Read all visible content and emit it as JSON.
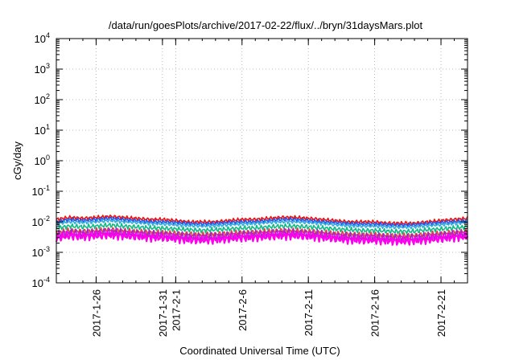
{
  "chart_data": {
    "type": "line",
    "title": "/data/run/goesPlots/archive/2017-02-22/flux/../bryn/31daysMars.plot",
    "xlabel": "Coordinated Universal Time (UTC)",
    "ylabel": "cGy/day",
    "y_scale": "log",
    "ylim": [
      0.0001,
      10000
    ],
    "xlim": [
      "2017-01-23",
      "2017-02-23"
    ],
    "grid": true,
    "y_ticks": [
      {
        "base": "10",
        "exp": "4",
        "value": 10000
      },
      {
        "base": "10",
        "exp": "3",
        "value": 1000
      },
      {
        "base": "10",
        "exp": "2",
        "value": 100
      },
      {
        "base": "10",
        "exp": "1",
        "value": 10
      },
      {
        "base": "10",
        "exp": "0",
        "value": 1
      },
      {
        "base": "10",
        "exp": "-1",
        "value": 0.1
      },
      {
        "base": "10",
        "exp": "-2",
        "value": 0.01
      },
      {
        "base": "10",
        "exp": "-3",
        "value": 0.001
      },
      {
        "base": "10",
        "exp": "-4",
        "value": 0.0001
      }
    ],
    "x_ticks": [
      {
        "date": "2017-01-26",
        "label": "2017-1-26"
      },
      {
        "date": "2017-01-31",
        "label": "2017-1-31"
      },
      {
        "date": "2017-02-01",
        "label": "2017-2-1"
      },
      {
        "date": "2017-02-06",
        "label": "2017-2-6"
      },
      {
        "date": "2017-02-11",
        "label": "2017-2-11"
      },
      {
        "date": "2017-02-16",
        "label": "2017-2-16"
      },
      {
        "date": "2017-02-21",
        "label": "2017-2-21"
      }
    ],
    "x": [
      "2017-01-23",
      "2017-01-24",
      "2017-01-25",
      "2017-01-26",
      "2017-01-27",
      "2017-01-28",
      "2017-01-29",
      "2017-01-30",
      "2017-01-31",
      "2017-02-01",
      "2017-02-02",
      "2017-02-03",
      "2017-02-04",
      "2017-02-05",
      "2017-02-06",
      "2017-02-07",
      "2017-02-08",
      "2017-02-09",
      "2017-02-10",
      "2017-02-11",
      "2017-02-12",
      "2017-02-13",
      "2017-02-14",
      "2017-02-15",
      "2017-02-16",
      "2017-02-17",
      "2017-02-18",
      "2017-02-19",
      "2017-02-20",
      "2017-02-21",
      "2017-02-22",
      "2017-02-23"
    ],
    "series": [
      {
        "color": "#ee1111",
        "values": [
          0.012,
          0.014,
          0.013,
          0.014,
          0.015,
          0.014,
          0.013,
          0.012,
          0.012,
          0.011,
          0.01,
          0.01,
          0.01,
          0.011,
          0.012,
          0.012,
          0.013,
          0.014,
          0.014,
          0.013,
          0.012,
          0.011,
          0.01,
          0.01,
          0.01,
          0.009,
          0.009,
          0.009,
          0.01,
          0.011,
          0.012,
          0.013
        ]
      },
      {
        "color": "#2255ee",
        "values": [
          0.01,
          0.012,
          0.011,
          0.012,
          0.013,
          0.012,
          0.011,
          0.01,
          0.01,
          0.0095,
          0.0088,
          0.0085,
          0.0088,
          0.0095,
          0.01,
          0.01,
          0.011,
          0.012,
          0.012,
          0.011,
          0.01,
          0.0095,
          0.0088,
          0.0085,
          0.0085,
          0.008,
          0.0078,
          0.008,
          0.0088,
          0.0095,
          0.01,
          0.011
        ]
      },
      {
        "color": "#33aadd",
        "values": [
          0.0085,
          0.01,
          0.0095,
          0.01,
          0.011,
          0.01,
          0.0095,
          0.0088,
          0.0085,
          0.008,
          0.0075,
          0.0072,
          0.0075,
          0.008,
          0.0085,
          0.0088,
          0.0095,
          0.01,
          0.01,
          0.0095,
          0.0088,
          0.008,
          0.0075,
          0.0072,
          0.0072,
          0.0068,
          0.0066,
          0.0068,
          0.0075,
          0.008,
          0.0088,
          0.0095
        ]
      },
      {
        "color": "#11bb88",
        "values": [
          0.0062,
          0.0072,
          0.0068,
          0.0072,
          0.0078,
          0.0072,
          0.0068,
          0.0063,
          0.0062,
          0.0058,
          0.0055,
          0.0052,
          0.0055,
          0.0058,
          0.0062,
          0.0063,
          0.0068,
          0.0072,
          0.0072,
          0.0068,
          0.0063,
          0.0058,
          0.0055,
          0.0052,
          0.0052,
          0.0049,
          0.0048,
          0.0049,
          0.0055,
          0.0058,
          0.0063,
          0.0068
        ]
      },
      {
        "color": "#dd4444",
        "values": [
          0.0045,
          0.0052,
          0.0049,
          0.0052,
          0.0056,
          0.0052,
          0.0049,
          0.0046,
          0.0045,
          0.0042,
          0.004,
          0.0038,
          0.004,
          0.0042,
          0.0045,
          0.0046,
          0.0049,
          0.0052,
          0.0052,
          0.0049,
          0.0046,
          0.0042,
          0.004,
          0.0038,
          0.0038,
          0.0036,
          0.0035,
          0.0036,
          0.004,
          0.0042,
          0.0046,
          0.0049
        ]
      },
      {
        "color": "#aa22cc",
        "values": [
          0.0038,
          0.0044,
          0.0041,
          0.0044,
          0.0047,
          0.0044,
          0.0041,
          0.0039,
          0.0038,
          0.0035,
          0.0033,
          0.0032,
          0.0033,
          0.0035,
          0.0038,
          0.0039,
          0.0041,
          0.0044,
          0.0044,
          0.0041,
          0.0039,
          0.0035,
          0.0033,
          0.0032,
          0.0032,
          0.003,
          0.0029,
          0.003,
          0.0033,
          0.0035,
          0.0039,
          0.0041
        ]
      },
      {
        "color": "#ff00ee",
        "values": [
          0.003,
          0.0035,
          0.0033,
          0.0035,
          0.0037,
          0.0035,
          0.0033,
          0.0031,
          0.003,
          0.0028,
          0.0026,
          0.0025,
          0.0026,
          0.0028,
          0.003,
          0.0031,
          0.0033,
          0.0035,
          0.0035,
          0.0033,
          0.0031,
          0.0028,
          0.0026,
          0.0025,
          0.0025,
          0.0024,
          0.0023,
          0.0024,
          0.0026,
          0.0028,
          0.0031,
          0.0033
        ]
      }
    ]
  }
}
